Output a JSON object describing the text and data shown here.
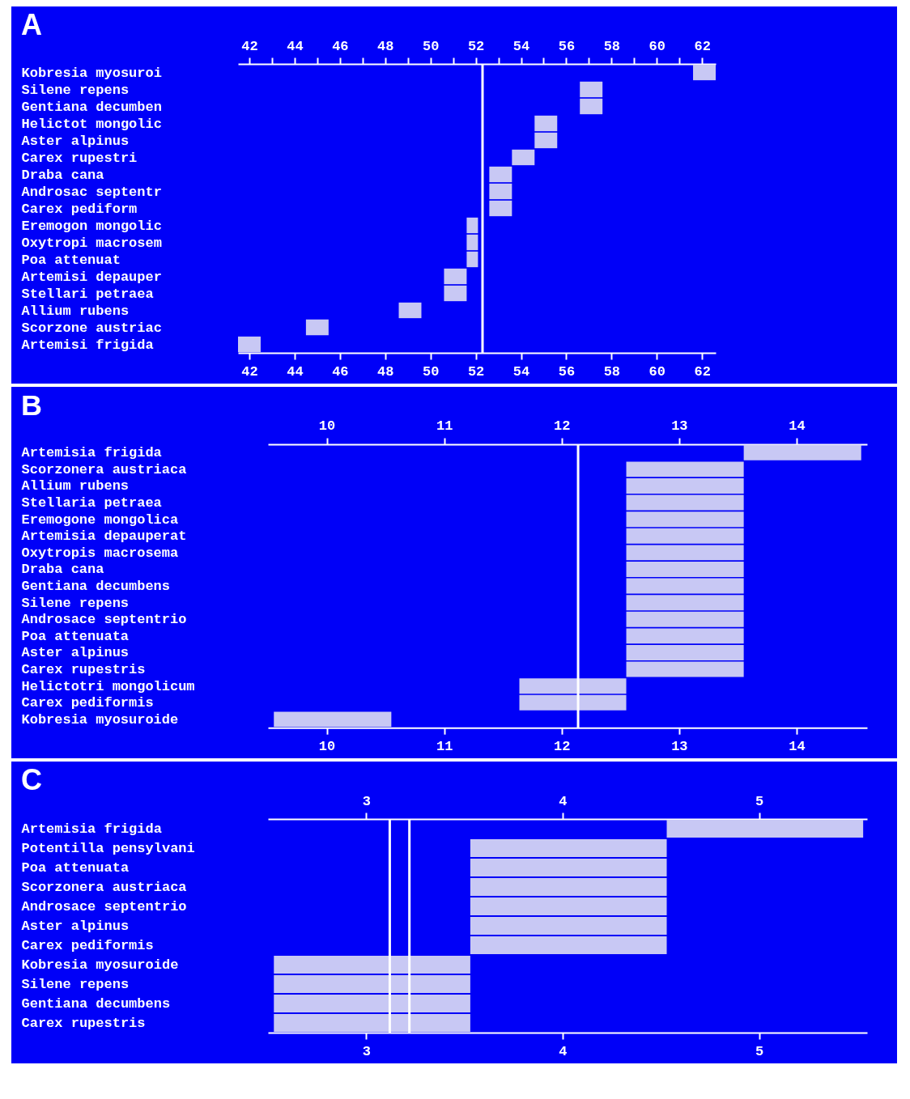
{
  "chart_data": [
    {
      "type": "bar",
      "title": "A",
      "orientation": "horizontal",
      "categories": [
        "Kobresia myosuroi",
        "Silene repens",
        "Gentiana decumben",
        "Helictot mongolic",
        "Aster alpinus",
        "Carex rupestri",
        "Draba cana",
        "Androsac septentr",
        "Carex pediform",
        "Eremogon mongolic",
        "Oxytropi macrosem",
        "Poa attenuat",
        "Artemisi depauper",
        "Stellari petraea",
        "Allium rubens",
        "Scorzone austriac",
        "Artemisi frigida"
      ],
      "base": [
        61.6,
        56.6,
        56.6,
        54.6,
        54.6,
        53.6,
        52.6,
        52.6,
        52.6,
        51.6,
        51.6,
        51.6,
        50.6,
        50.6,
        48.6,
        44.5,
        41.5
      ],
      "values": [
        1,
        1,
        1,
        1,
        1,
        1,
        1,
        1,
        1,
        0.5,
        0.5,
        0.5,
        1,
        1,
        1,
        1,
        1
      ],
      "color": "#c8c8f4",
      "xlim": [
        41.5,
        62.6
      ],
      "xticks": [
        42,
        {
          "value": 43,
          "label": null
        },
        44,
        {
          "value": 45,
          "label": null
        },
        46,
        {
          "value": 47,
          "label": null
        },
        48,
        {
          "value": 49,
          "label": null
        },
        50,
        {
          "value": 51,
          "label": null
        },
        52,
        {
          "value": 53,
          "label": null
        },
        54,
        {
          "value": 55,
          "label": null
        },
        56,
        {
          "value": 57,
          "label": null
        },
        58,
        {
          "value": 59,
          "label": null
        },
        60,
        {
          "value": 61,
          "label": null
        },
        62
      ],
      "x2lim": [
        41.5,
        62.6
      ],
      "x2ticks": [
        42,
        {
          "value": 43,
          "label": null
        },
        44,
        {
          "value": 45,
          "label": null
        },
        46,
        {
          "value": 47,
          "label": null
        },
        48,
        {
          "value": 49,
          "label": null
        },
        50,
        {
          "value": 51,
          "label": null
        },
        52,
        {
          "value": 53,
          "label": null
        },
        54,
        {
          "value": 55,
          "label": null
        },
        56,
        {
          "value": 57,
          "label": null
        },
        58,
        {
          "value": 59,
          "label": null
        },
        60,
        {
          "value": 61,
          "label": null
        },
        62
      ],
      "ref_lines": [
        {
          "axis": "x",
          "value": 52.3,
          "color": "#ffffff"
        }
      ]
    },
    {
      "type": "bar",
      "title": "B",
      "orientation": "horizontal",
      "categories": [
        "Artemisia frigida",
        "Scorzonera austriaca",
        "Allium rubens",
        "Stellaria petraea",
        "Eremogone mongolica",
        "Artemisia depauperat",
        "Oxytropis macrosema",
        "Draba cana",
        "Gentiana decumbens",
        "Silene repens",
        "Androsace septentrio",
        "Poa attenuata",
        "Aster alpinus",
        "Carex rupestris",
        "Helictotri mongolicum",
        "Carex pediformis",
        "Kobresia myosuroide"
      ],
      "base": [
        13.55,
        12.55,
        12.55,
        12.55,
        12.55,
        12.55,
        12.55,
        12.55,
        12.55,
        12.55,
        12.55,
        12.55,
        12.55,
        12.55,
        11.64,
        11.64,
        9.55
      ],
      "values": [
        1,
        1,
        1,
        1,
        1,
        1,
        1,
        1,
        1,
        1,
        1,
        1,
        1,
        1,
        0.91,
        0.91,
        1
      ],
      "color": "#c8c8f4",
      "xlim": [
        9.5,
        14.6
      ],
      "xticks": [
        10,
        11,
        12,
        13,
        14
      ],
      "x2lim": [
        9.5,
        14.6
      ],
      "x2ticks": [
        10,
        11,
        12,
        13,
        14
      ],
      "ref_lines": [
        {
          "axis": "x",
          "value": 12.14,
          "color": "#ffffff"
        }
      ]
    },
    {
      "type": "bar",
      "title": "C",
      "orientation": "horizontal",
      "categories": [
        "Artemisia frigida",
        "Potentilla pensylvani",
        "Poa attenuata",
        "Scorzonera austriaca",
        "Androsace septentrio",
        "Aster alpinus",
        "Carex pediformis",
        "Kobresia myosuroide",
        "Silene repens",
        "Gentiana decumbens",
        "Carex rupestris"
      ],
      "base": [
        4.53,
        3.53,
        3.53,
        3.53,
        3.53,
        3.53,
        3.53,
        2.53,
        2.53,
        2.53,
        2.53
      ],
      "values": [
        1,
        1,
        1,
        1,
        1,
        1,
        1,
        1,
        1,
        1,
        1
      ],
      "color": "#c8c8f4",
      "xlim": [
        2.5,
        5.55
      ],
      "xticks": [
        3,
        4,
        5
      ],
      "x2lim": [
        2.5,
        5.55
      ],
      "x2ticks": [
        3,
        4,
        5
      ],
      "ref_lines": [
        {
          "axis": "x",
          "value": 3.12,
          "color": "#ffffff"
        },
        {
          "axis": "x",
          "value": 3.22,
          "color": "#ffffff"
        }
      ]
    }
  ]
}
